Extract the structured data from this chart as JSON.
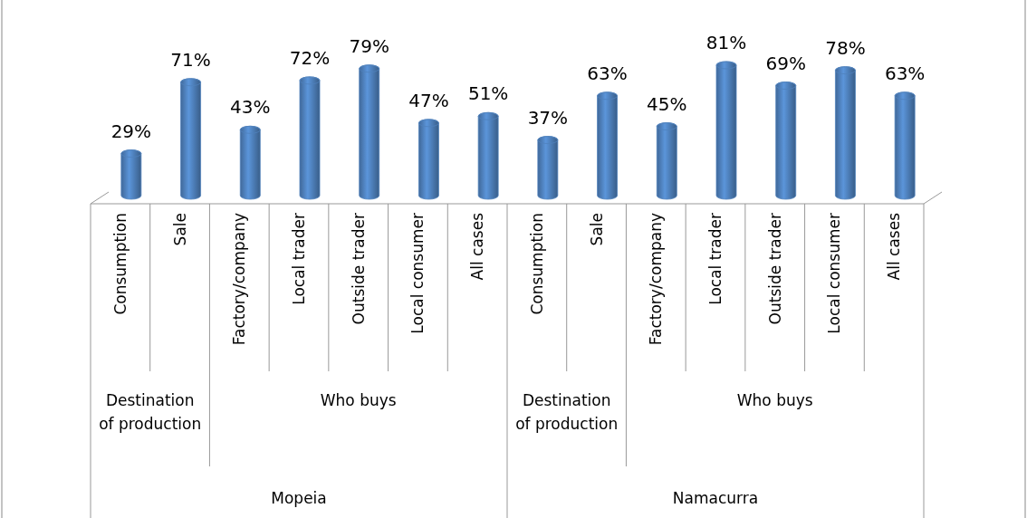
{
  "chart_data": {
    "type": "bar",
    "categories": [
      "Consumption",
      "Sale",
      "Factory/company",
      "Local trader",
      "Outside trader",
      "Local consumer",
      "All cases",
      "Consumption",
      "Sale",
      "Factory/company",
      "Local trader",
      "Outside trader",
      "Local consumer",
      "All cases"
    ],
    "values": [
      29,
      71,
      43,
      72,
      79,
      47,
      51,
      37,
      63,
      45,
      81,
      69,
      78,
      63
    ],
    "value_labels": [
      "29%",
      "71%",
      "43%",
      "72%",
      "79%",
      "47%",
      "51%",
      "37%",
      "63%",
      "45%",
      "81%",
      "69%",
      "78%",
      "63%"
    ],
    "color": "#4f81bd",
    "annotations": [
      "Destination of production",
      "Who buys",
      "Destination of production",
      "Who buys",
      "Mopeia",
      "Namacurra"
    ]
  }
}
